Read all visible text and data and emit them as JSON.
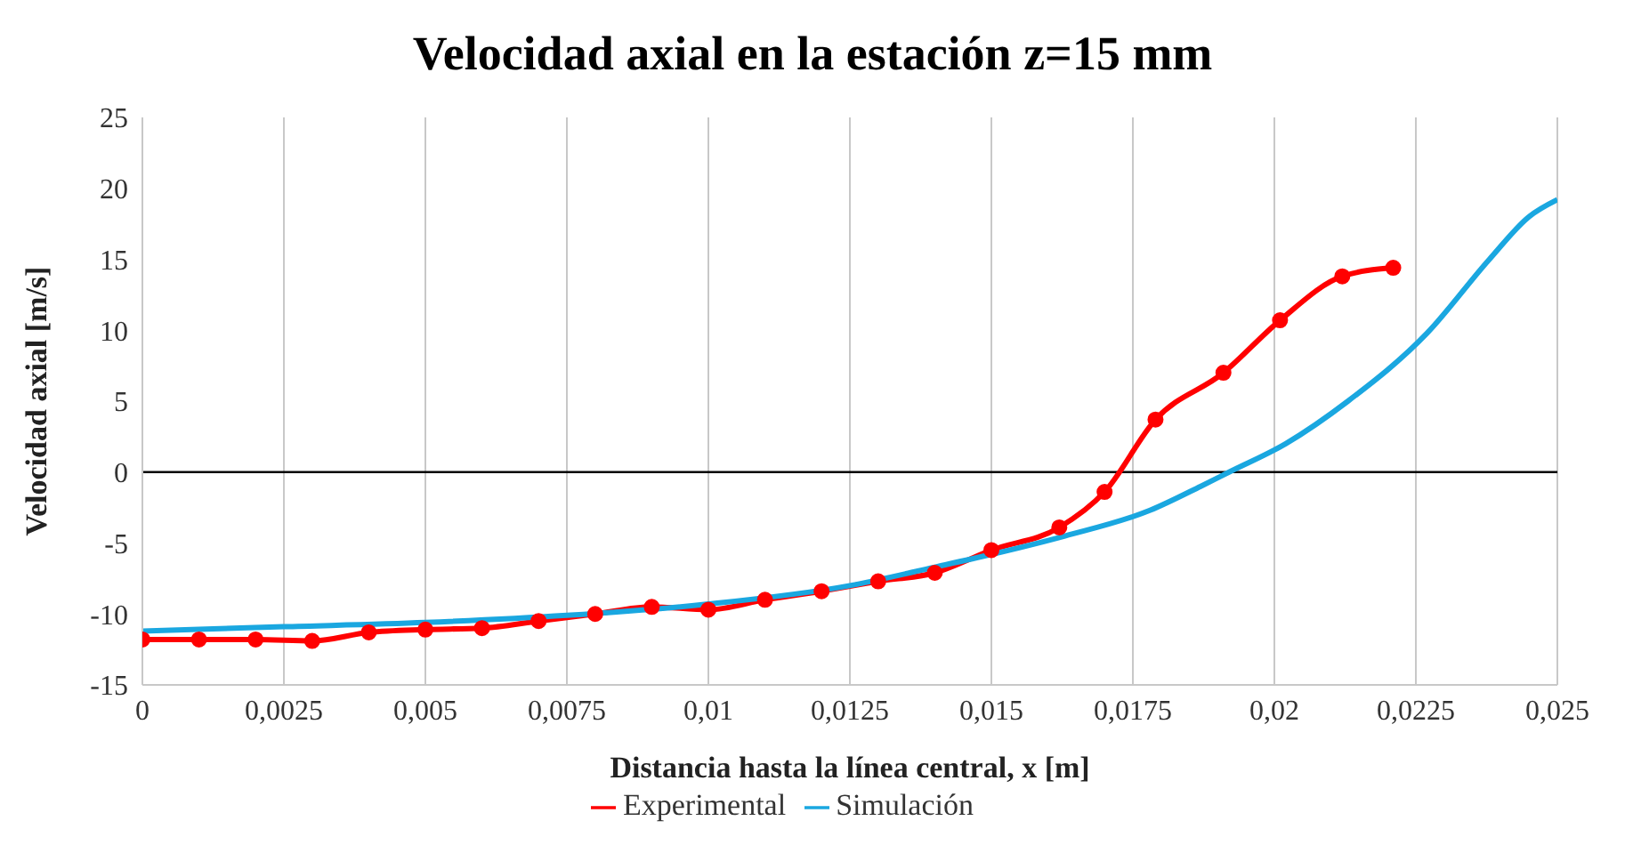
{
  "chart_data": {
    "type": "line",
    "title": "Velocidad axial en la estación z=15 mm",
    "xlabel": "Distancia hasta la línea central, x [m]",
    "ylabel": "Velocidad axial [m/s]",
    "xlim": [
      0,
      0.025
    ],
    "xticks": [
      0,
      {
        "value": 0.0025,
        "label": "0,0025"
      },
      {
        "value": 0.005,
        "label": "0,005"
      },
      {
        "value": 0.0075,
        "label": "0,0075"
      },
      {
        "value": 0.01,
        "label": "0,01"
      },
      {
        "value": 0.0125,
        "label": "0,0125"
      },
      {
        "value": 0.015,
        "label": "0,015"
      },
      {
        "value": 0.0175,
        "label": "0,0175"
      },
      {
        "value": 0.02,
        "label": "0,02"
      },
      {
        "value": 0.0225,
        "label": "0,0225"
      },
      {
        "value": 0.025,
        "label": "0,025"
      }
    ],
    "ylim": [
      -15,
      25
    ],
    "yticks": [
      -15,
      -10,
      -5,
      0,
      5,
      10,
      15,
      20,
      25
    ],
    "grid": "x",
    "legend": "bottom",
    "ref_lines": [
      {
        "axis": "y",
        "value": 0,
        "color": "#000000"
      }
    ],
    "series": [
      {
        "name": "Experimental",
        "color": "#ff0000",
        "marker": "circle",
        "x": [
          0,
          0.001,
          0.002,
          0.003,
          0.004,
          0.005,
          0.006,
          0.007,
          0.008,
          0.009,
          0.01,
          0.011,
          0.012,
          0.013,
          0.014,
          0.015,
          0.0162,
          0.017,
          0.0179,
          0.0191,
          0.0201,
          0.0212,
          0.0221
        ],
        "values": [
          -11.8,
          -11.8,
          -11.8,
          -11.9,
          -11.3,
          -11.1,
          -11,
          -10.5,
          -10,
          -9.5,
          -9.7,
          -9,
          -8.4,
          -7.7,
          -7.1,
          -5.5,
          -3.9,
          -1.4,
          3.7,
          7,
          10.7,
          13.8,
          14.4
        ]
      },
      {
        "name": "Simulación",
        "color": "#1aa7e0",
        "marker": "none",
        "x": [
          0,
          0.0025,
          0.005,
          0.0075,
          0.01,
          0.0125,
          0.014,
          0.015,
          0.0163,
          0.0178,
          0.0187,
          0.0192,
          0.0202,
          0.0213,
          0.0227,
          0.0238,
          0.0245,
          0.025
        ],
        "values": [
          -11.2,
          -10.9,
          -10.6,
          -10.1,
          -9.3,
          -8,
          -6.7,
          -5.8,
          -4.5,
          -2.7,
          -1,
          0,
          2,
          5,
          9.8,
          15,
          18,
          19.2
        ]
      }
    ]
  }
}
